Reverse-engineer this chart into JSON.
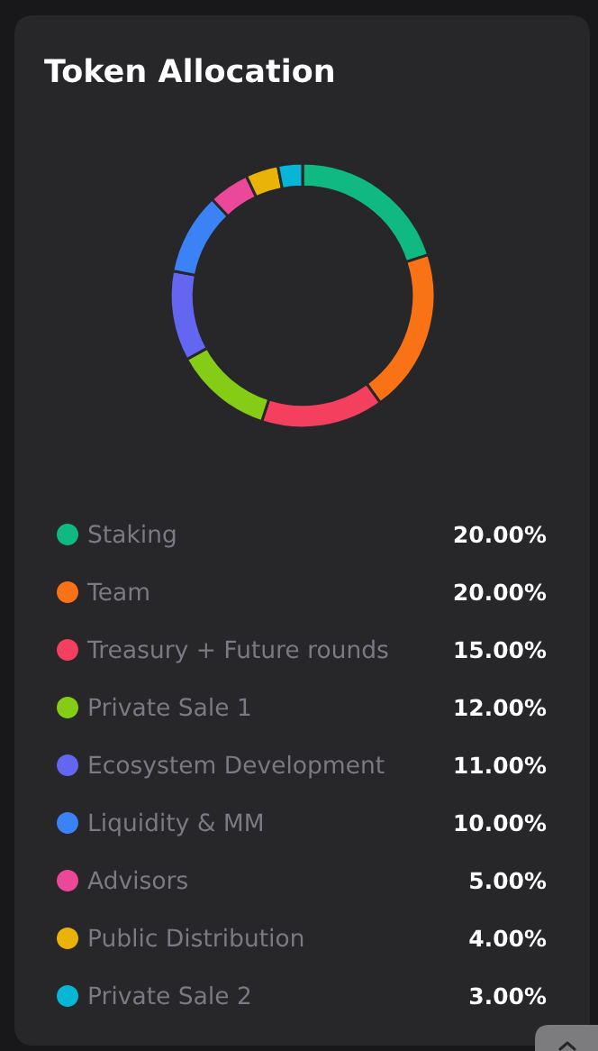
{
  "chart_data": {
    "type": "donut",
    "title": "Token Allocation",
    "categories": [
      "Staking",
      "Team",
      "Treasury + Future rounds",
      "Private Sale 1",
      "Ecosystem Development",
      "Liquidity & MM",
      "Advisors",
      "Public Distribution",
      "Private Sale 2"
    ],
    "values": [
      20,
      20,
      15,
      12,
      11,
      10,
      5,
      4,
      3
    ],
    "colors": [
      "#10b981",
      "#f97316",
      "#f43f5e",
      "#84cc16",
      "#6366f1",
      "#3b82f6",
      "#ec4899",
      "#eab308",
      "#06b6d4"
    ],
    "value_labels": [
      "20.00%",
      "20.00%",
      "15.00%",
      "12.00%",
      "11.00%",
      "10.00%",
      "5.00%",
      "4.00%",
      "3.00%"
    ],
    "legend": "bottom"
  }
}
